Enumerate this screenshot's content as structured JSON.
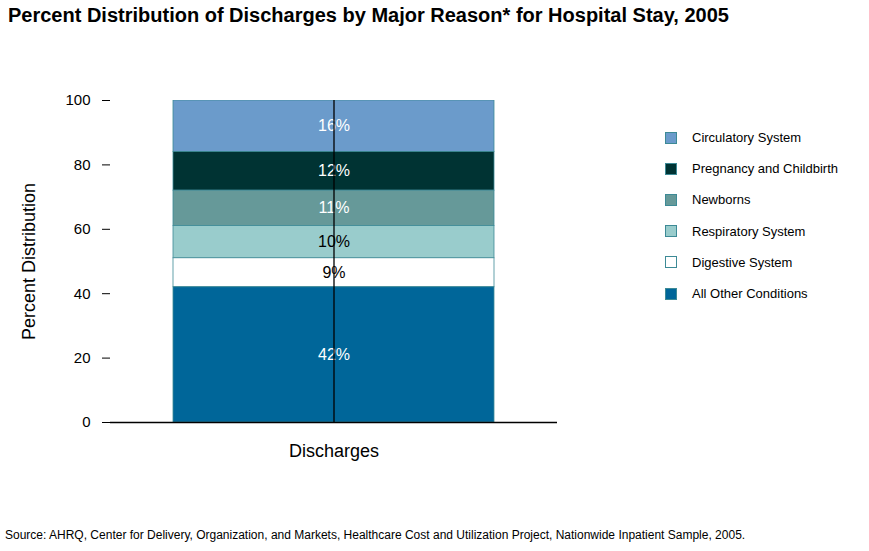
{
  "chart_data": {
    "type": "bar",
    "title": "Percent Distribution of Discharges by Major Reason* for Hospital Stay, 2005",
    "ylabel": "Percent Distribution",
    "categories": [
      "Discharges"
    ],
    "stacked": true,
    "data_labels": true,
    "legend": "right",
    "series": [
      {
        "name": "Circulatory System",
        "color": "#6b9bcb",
        "values": [
          16
        ],
        "value_labels": [
          "16%"
        ]
      },
      {
        "name": "Pregnancy and Childbirth",
        "color": "#003333",
        "values": [
          12
        ],
        "value_labels": [
          "12%"
        ]
      },
      {
        "name": "Newborns",
        "color": "#669999",
        "values": [
          11
        ],
        "value_labels": [
          "11%"
        ]
      },
      {
        "name": "Respiratory System",
        "color": "#99cccc",
        "values": [
          10
        ],
        "value_labels": [
          "10%"
        ]
      },
      {
        "name": "Digestive System",
        "color": "#ffffff",
        "values": [
          9
        ],
        "value_labels": [
          "9%"
        ]
      },
      {
        "name": "All Other Conditions",
        "color": "#006699",
        "values": [
          42
        ],
        "value_labels": [
          "42%"
        ]
      }
    ],
    "ylim": [
      0,
      100
    ],
    "yticks": [
      0,
      20,
      40,
      60,
      80,
      100
    ],
    "source": "Source:  AHRQ, Center for Delivery, Organization, and Markets, Healthcare Cost and Utilization Project, Nationwide Inpatient Sample, 2005."
  }
}
